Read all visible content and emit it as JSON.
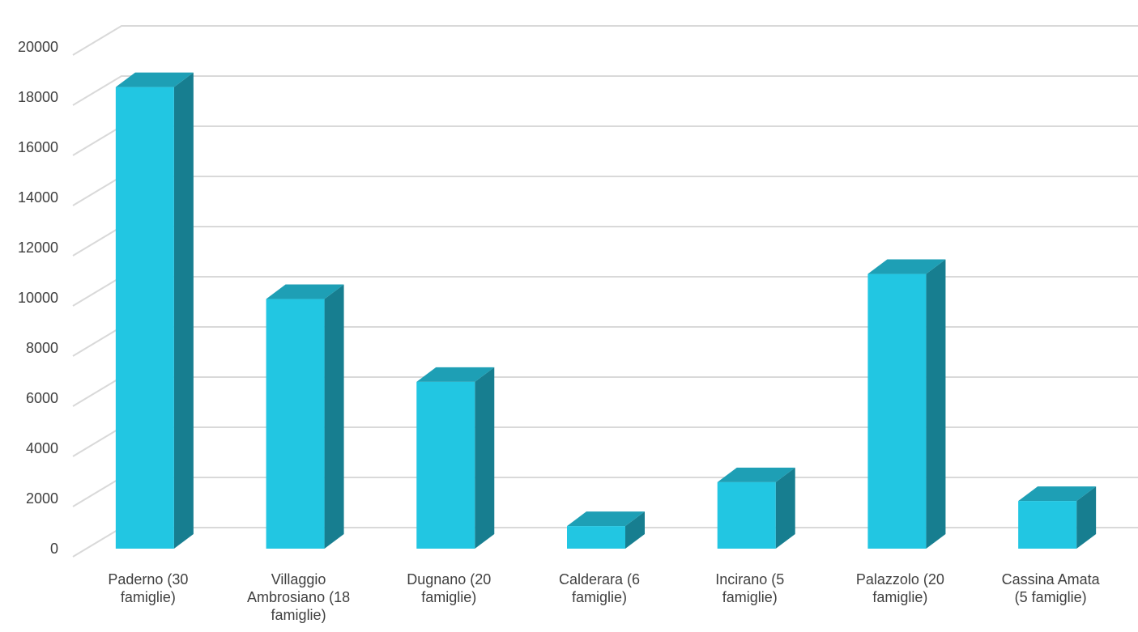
{
  "chart_data": {
    "type": "bar",
    "title": "",
    "xlabel": "",
    "ylabel": "",
    "ylim": [
      0,
      20000
    ],
    "yticks": [
      "0",
      "2000",
      "4000",
      "6000",
      "8000",
      "10000",
      "12000",
      "14000",
      "16000",
      "18000",
      "20000"
    ],
    "grid": true,
    "legend": "none",
    "style": "3d-column",
    "categories": [
      [
        "Paderno (30",
        "famiglie)"
      ],
      [
        "Villaggio",
        "Ambrosiano (18",
        "famiglie)"
      ],
      [
        "Dugnano (20",
        "famiglie)"
      ],
      [
        "Calderara (6",
        "famiglie)"
      ],
      [
        "Incirano (5",
        "famiglie)"
      ],
      [
        "Palazzolo (20",
        "famiglie)"
      ],
      [
        "Cassina Amata",
        "(5 famiglie)"
      ]
    ],
    "values": [
      18400,
      9950,
      6650,
      900,
      2650,
      10950,
      1900
    ],
    "colors": {
      "bar_front": "#22c6e2",
      "bar_side": "#177e90",
      "bar_top": "#1e9fb5",
      "gridline": "#d9d9d9"
    }
  }
}
